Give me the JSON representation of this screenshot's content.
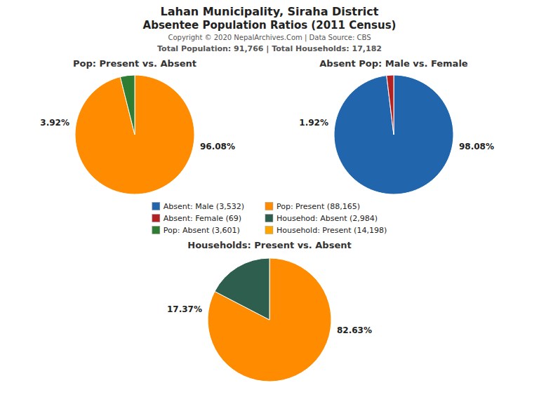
{
  "title": "Lahan Municipality, Siraha District",
  "subtitle": "Absentee Population Ratios (2011 Census)",
  "annotations": [
    "Copyright © 2020 NepalArchives.Com | Data Source: CBS",
    "Total Population: 91,766 | Total Households: 17,182"
  ],
  "series": [
    {
      "name": "Absent: Male (3,532)",
      "color": "#2166AC"
    },
    {
      "name": "Absent: Female (69)",
      "color": "#B22222"
    },
    {
      "name": "Pop: Absent (3,601)",
      "color": "#2E7D32"
    },
    {
      "name": "Pop: Present (88,165)",
      "color": "#FF8C00"
    },
    {
      "name": "Househod: Absent (2,984)",
      "color": "#2E5E4E"
    },
    {
      "name": "Household: Present (14,198)",
      "color": "#FFA500"
    }
  ],
  "chart_data": [
    {
      "type": "pie",
      "title": "Pop: Present vs. Absent",
      "values": [
        96.08,
        3.92
      ],
      "value_labels": [
        "96.08%",
        "3.92%"
      ],
      "colors": [
        "#FF8C00",
        "#2E7D32"
      ],
      "data_labels": true
    },
    {
      "type": "pie",
      "title": "Absent Pop: Male vs. Female",
      "values": [
        98.08,
        1.92
      ],
      "value_labels": [
        "98.08%",
        "1.92%"
      ],
      "colors": [
        "#2166AC",
        "#B22222"
      ],
      "data_labels": true
    },
    {
      "type": "pie",
      "title": "Households: Present vs. Absent",
      "values": [
        82.63,
        17.37
      ],
      "value_labels": [
        "82.63%",
        "17.37%"
      ],
      "colors": [
        "#FF8C00",
        "#2E5E4E"
      ],
      "data_labels": true
    }
  ]
}
